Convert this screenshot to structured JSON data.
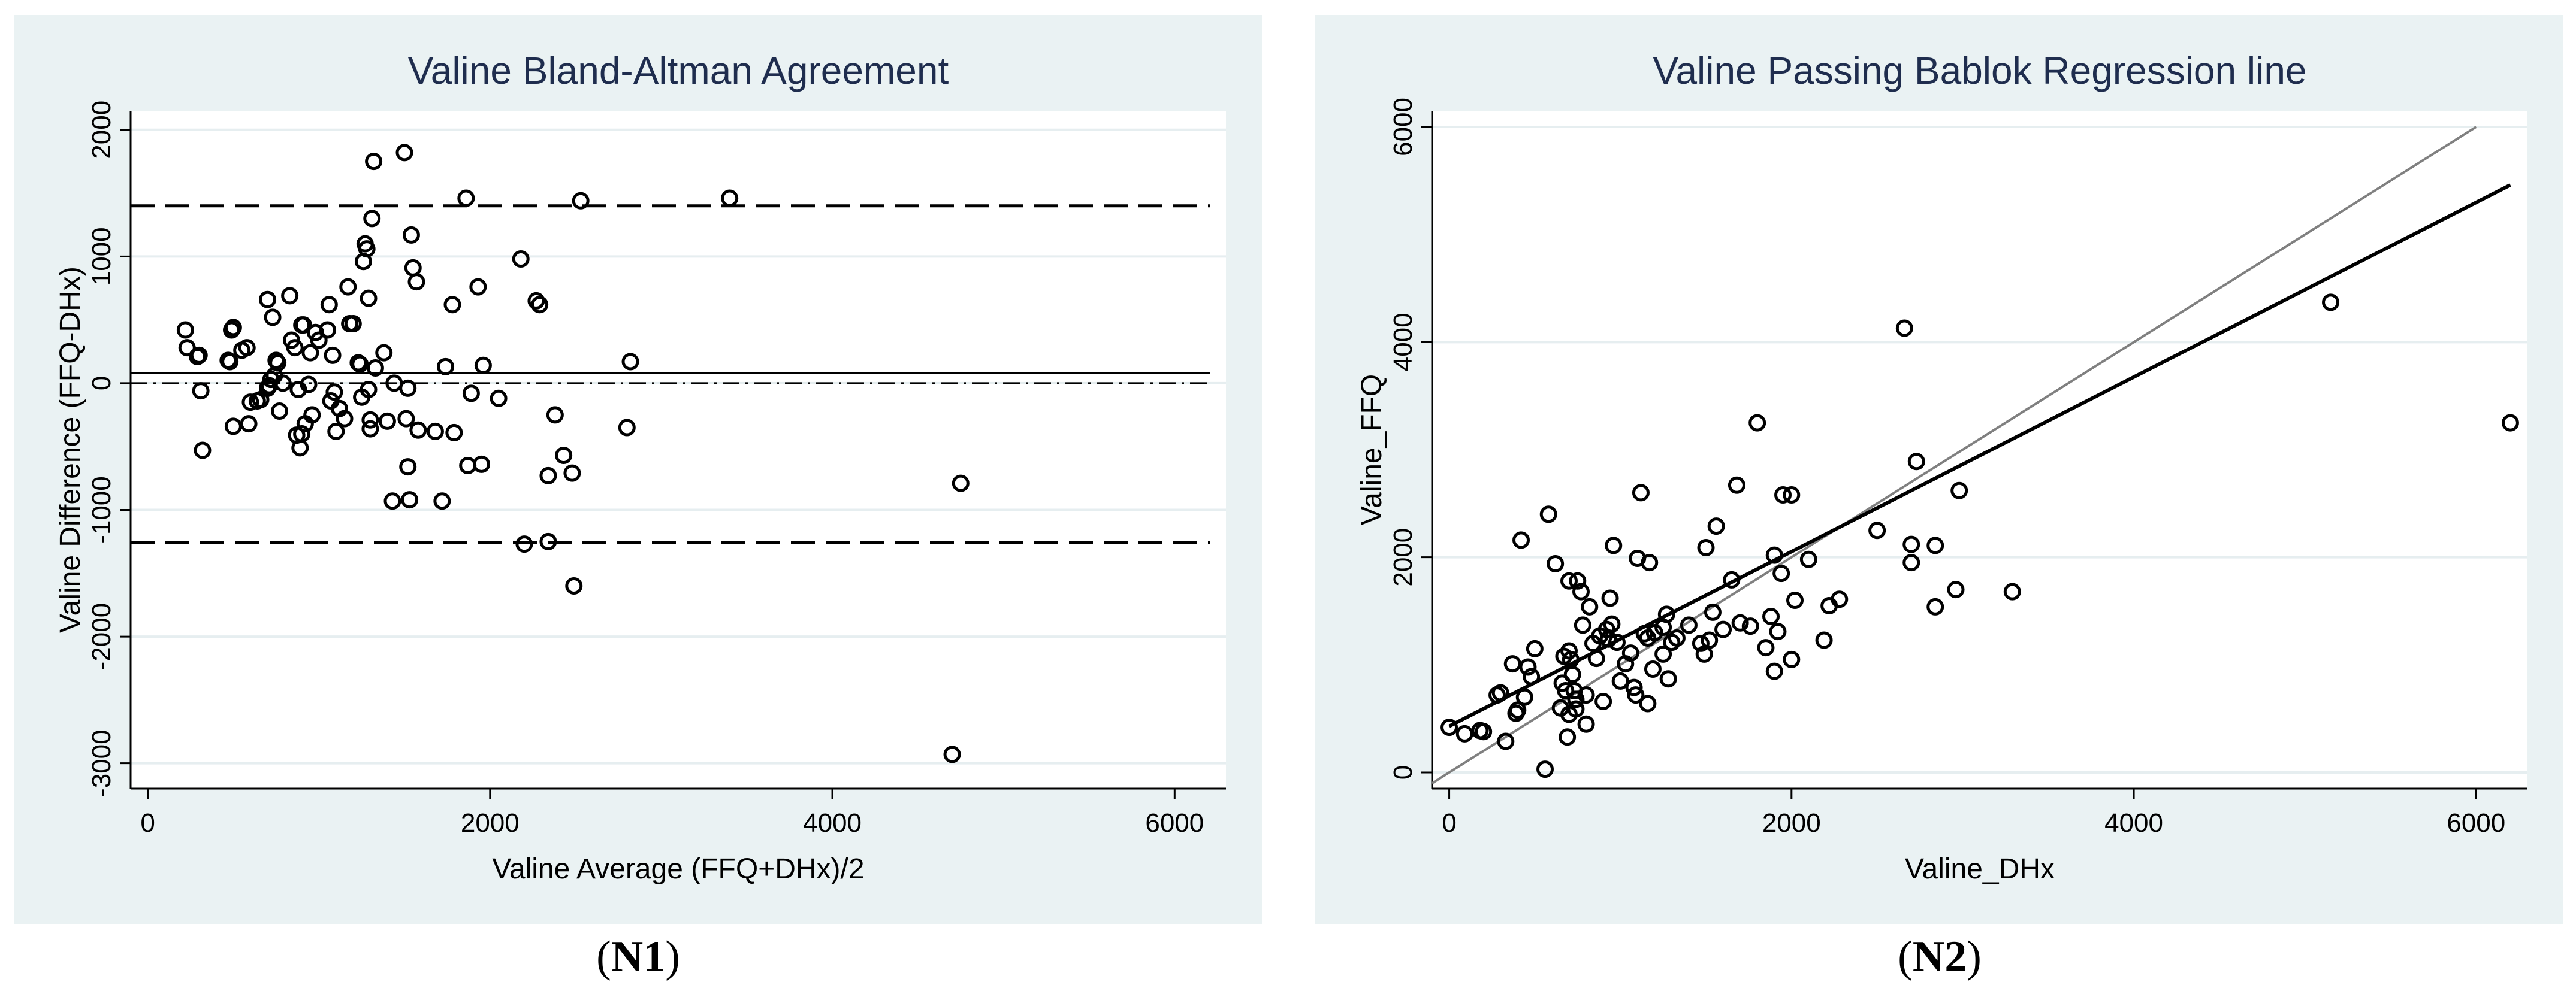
{
  "colors": {
    "panel_bg": "#eaf2f3",
    "plot_bg": "#ffffff",
    "grid": "#e6eef0",
    "title": "#1f2d4e",
    "marker": "#000000",
    "identity_line": "#808080"
  },
  "captions": {
    "left": {
      "open": "(",
      "bold": "N1",
      "close": ")"
    },
    "right": {
      "open": "(",
      "bold": "N2",
      "close": ")"
    }
  },
  "chart_data": [
    {
      "type": "scatter",
      "title": "Valine Bland-Altman Agreement",
      "xlabel": "Valine Average (FFQ+DHx)/2",
      "ylabel": "Valine Difference (FFQ-DHx)",
      "xlim": [
        -100,
        6300
      ],
      "ylim": [
        -3200,
        2150
      ],
      "xticks": [
        0,
        2000,
        4000,
        6000
      ],
      "yticks": [
        -3000,
        -2000,
        -1000,
        0,
        1000,
        2000
      ],
      "grid": true,
      "reference_lines": [
        {
          "y": 1400,
          "style": "dashed",
          "label": "upper limit of agreement"
        },
        {
          "y": 80,
          "style": "solid",
          "label": "mean difference"
        },
        {
          "y": 0,
          "style": "dashdot",
          "label": "zero line"
        },
        {
          "y": -1260,
          "style": "dashed",
          "label": "lower limit of agreement"
        }
      ],
      "points": [
        [
          220,
          420
        ],
        [
          230,
          280
        ],
        [
          290,
          210
        ],
        [
          300,
          220
        ],
        [
          310,
          -60
        ],
        [
          320,
          -530
        ],
        [
          470,
          180
        ],
        [
          480,
          170
        ],
        [
          490,
          420
        ],
        [
          500,
          440
        ],
        [
          500,
          -340
        ],
        [
          550,
          260
        ],
        [
          580,
          280
        ],
        [
          590,
          -320
        ],
        [
          600,
          -150
        ],
        [
          640,
          -140
        ],
        [
          660,
          -130
        ],
        [
          700,
          660
        ],
        [
          700,
          -40
        ],
        [
          710,
          -20
        ],
        [
          720,
          30
        ],
        [
          730,
          520
        ],
        [
          740,
          60
        ],
        [
          750,
          180
        ],
        [
          760,
          160
        ],
        [
          770,
          -220
        ],
        [
          790,
          0
        ],
        [
          830,
          690
        ],
        [
          840,
          340
        ],
        [
          860,
          280
        ],
        [
          870,
          -410
        ],
        [
          880,
          -50
        ],
        [
          890,
          -510
        ],
        [
          900,
          460
        ],
        [
          900,
          -400
        ],
        [
          910,
          460
        ],
        [
          920,
          -320
        ],
        [
          940,
          -10
        ],
        [
          950,
          240
        ],
        [
          960,
          -250
        ],
        [
          980,
          400
        ],
        [
          1000,
          340
        ],
        [
          1050,
          420
        ],
        [
          1060,
          620
        ],
        [
          1070,
          -140
        ],
        [
          1080,
          220
        ],
        [
          1090,
          -70
        ],
        [
          1100,
          -380
        ],
        [
          1120,
          -200
        ],
        [
          1150,
          -280
        ],
        [
          1170,
          760
        ],
        [
          1180,
          470
        ],
        [
          1200,
          470
        ],
        [
          1230,
          160
        ],
        [
          1240,
          150
        ],
        [
          1250,
          -110
        ],
        [
          1260,
          960
        ],
        [
          1270,
          1100
        ],
        [
          1280,
          1060
        ],
        [
          1290,
          -50
        ],
        [
          1290,
          670
        ],
        [
          1300,
          -290
        ],
        [
          1300,
          -360
        ],
        [
          1310,
          1300
        ],
        [
          1320,
          1750
        ],
        [
          1330,
          120
        ],
        [
          1380,
          240
        ],
        [
          1400,
          -300
        ],
        [
          1430,
          -930
        ],
        [
          1440,
          0
        ],
        [
          1500,
          1820
        ],
        [
          1510,
          -280
        ],
        [
          1520,
          -40
        ],
        [
          1520,
          -660
        ],
        [
          1530,
          -920
        ],
        [
          1540,
          1170
        ],
        [
          1550,
          910
        ],
        [
          1570,
          800
        ],
        [
          1580,
          -370
        ],
        [
          1680,
          -380
        ],
        [
          1720,
          -930
        ],
        [
          1740,
          130
        ],
        [
          1780,
          620
        ],
        [
          1790,
          -390
        ],
        [
          1860,
          1460
        ],
        [
          1870,
          -650
        ],
        [
          1890,
          -80
        ],
        [
          1930,
          760
        ],
        [
          1950,
          -640
        ],
        [
          1960,
          140
        ],
        [
          2050,
          -120
        ],
        [
          2180,
          980
        ],
        [
          2200,
          -1270
        ],
        [
          2270,
          650
        ],
        [
          2290,
          620
        ],
        [
          2340,
          -730
        ],
        [
          2340,
          -1250
        ],
        [
          2380,
          -250
        ],
        [
          2430,
          -570
        ],
        [
          2480,
          -710
        ],
        [
          2490,
          -1600
        ],
        [
          2530,
          1440
        ],
        [
          2800,
          -350
        ],
        [
          2820,
          170
        ],
        [
          3400,
          1460
        ],
        [
          4700,
          -2930
        ],
        [
          4750,
          -790
        ]
      ]
    },
    {
      "type": "scatter",
      "title": "Valine Passing Bablok Regression line",
      "xlabel": "Valine_DHx",
      "ylabel": "Valine_FFQ",
      "xlim": [
        -100,
        6300
      ],
      "ylim": [
        -150,
        6150
      ],
      "xticks": [
        0,
        2000,
        4000,
        6000
      ],
      "yticks": [
        0,
        2000,
        4000,
        6000
      ],
      "grid": true,
      "lines": [
        {
          "name": "",
          "style": "thin grey",
          "label": "identity line",
          "from": [
            -100,
            -100
          ],
          "to": [
            6000,
            6000
          ]
        },
        {
          "name": "",
          "style": "thick black",
          "label": "regression line",
          "from": [
            0,
            430
          ],
          "to": [
            6200,
            5460
          ]
        }
      ],
      "points": [
        [
          0,
          420
        ],
        [
          90,
          360
        ],
        [
          180,
          390
        ],
        [
          200,
          380
        ],
        [
          280,
          720
        ],
        [
          300,
          740
        ],
        [
          330,
          290
        ],
        [
          370,
          1010
        ],
        [
          390,
          550
        ],
        [
          400,
          580
        ],
        [
          420,
          2160
        ],
        [
          440,
          700
        ],
        [
          460,
          980
        ],
        [
          480,
          890
        ],
        [
          500,
          1150
        ],
        [
          560,
          30
        ],
        [
          580,
          2400
        ],
        [
          620,
          1940
        ],
        [
          650,
          600
        ],
        [
          660,
          830
        ],
        [
          670,
          1080
        ],
        [
          680,
          760
        ],
        [
          690,
          330
        ],
        [
          700,
          540
        ],
        [
          700,
          1130
        ],
        [
          700,
          1780
        ],
        [
          710,
          1050
        ],
        [
          720,
          910
        ],
        [
          730,
          760
        ],
        [
          740,
          590
        ],
        [
          740,
          680
        ],
        [
          750,
          1780
        ],
        [
          770,
          1680
        ],
        [
          780,
          1370
        ],
        [
          800,
          720
        ],
        [
          800,
          450
        ],
        [
          820,
          1540
        ],
        [
          840,
          1200
        ],
        [
          860,
          1060
        ],
        [
          880,
          1270
        ],
        [
          900,
          660
        ],
        [
          920,
          1330
        ],
        [
          930,
          1240
        ],
        [
          940,
          1620
        ],
        [
          950,
          1380
        ],
        [
          960,
          2110
        ],
        [
          980,
          1210
        ],
        [
          1000,
          850
        ],
        [
          1030,
          1010
        ],
        [
          1060,
          1110
        ],
        [
          1080,
          790
        ],
        [
          1090,
          720
        ],
        [
          1100,
          1990
        ],
        [
          1120,
          2600
        ],
        [
          1140,
          1290
        ],
        [
          1160,
          1250
        ],
        [
          1160,
          640
        ],
        [
          1170,
          1950
        ],
        [
          1190,
          960
        ],
        [
          1200,
          1300
        ],
        [
          1250,
          1100
        ],
        [
          1250,
          1350
        ],
        [
          1270,
          1470
        ],
        [
          1280,
          870
        ],
        [
          1300,
          1210
        ],
        [
          1330,
          1250
        ],
        [
          1400,
          1370
        ],
        [
          1470,
          1200
        ],
        [
          1490,
          1100
        ],
        [
          1500,
          2090
        ],
        [
          1520,
          1230
        ],
        [
          1540,
          1490
        ],
        [
          1560,
          2290
        ],
        [
          1600,
          1330
        ],
        [
          1650,
          1790
        ],
        [
          1680,
          2670
        ],
        [
          1700,
          1390
        ],
        [
          1760,
          1360
        ],
        [
          1800,
          3250
        ],
        [
          1850,
          1160
        ],
        [
          1880,
          1450
        ],
        [
          1900,
          940
        ],
        [
          1900,
          2020
        ],
        [
          1920,
          1310
        ],
        [
          1940,
          1850
        ],
        [
          1950,
          2580
        ],
        [
          2000,
          2580
        ],
        [
          2000,
          1050
        ],
        [
          2020,
          1600
        ],
        [
          2100,
          1980
        ],
        [
          2190,
          1230
        ],
        [
          2220,
          1550
        ],
        [
          2280,
          1610
        ],
        [
          2500,
          2250
        ],
        [
          2660,
          4130
        ],
        [
          2700,
          1950
        ],
        [
          2700,
          2120
        ],
        [
          2730,
          2890
        ],
        [
          2840,
          2110
        ],
        [
          2840,
          1540
        ],
        [
          2960,
          1700
        ],
        [
          2980,
          2620
        ],
        [
          3290,
          1680
        ],
        [
          5150,
          4370
        ],
        [
          6200,
          3250
        ]
      ]
    }
  ]
}
